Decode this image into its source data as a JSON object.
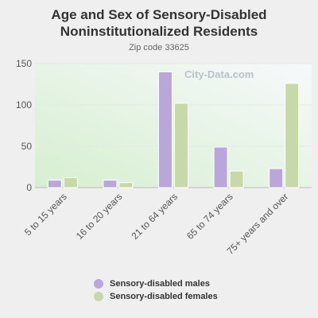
{
  "chart_data": {
    "type": "bar",
    "title": "Age and Sex of Sensory-Disabled Noninstitutionalized Residents",
    "subtitle": "Zip code 33625",
    "categories": [
      "5 to 15 years",
      "16 to 20 years",
      "21 to 64 years",
      "65 to 74 years",
      "75+ years and over"
    ],
    "series": [
      {
        "name": "Sensory-disabled males",
        "color": "#b9a6da",
        "values": [
          9,
          9,
          140,
          49,
          23
        ]
      },
      {
        "name": "Sensory-disabled females",
        "color": "#c6d9a6",
        "values": [
          12,
          6,
          102,
          20,
          126
        ]
      }
    ],
    "ylim": [
      0,
      150
    ],
    "yticks": [
      0,
      50,
      100,
      150
    ],
    "grid": true,
    "legend_position": "bottom"
  },
  "watermark": "City-Data.com"
}
